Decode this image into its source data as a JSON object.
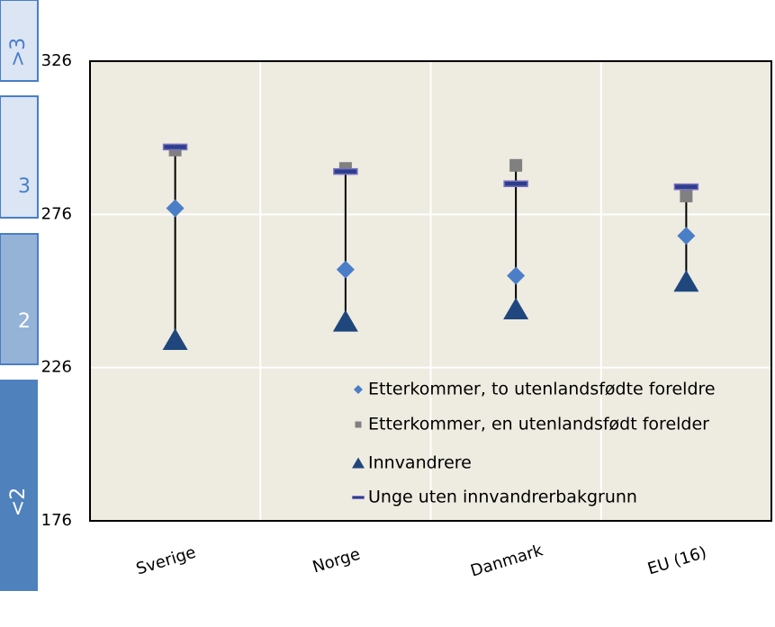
{
  "chart_data": {
    "type": "dot",
    "categories": [
      "Sverige",
      "Norge",
      "Danmark",
      "EU (16)"
    ],
    "series": [
      {
        "name": "Etterkommer, to utenlandsfødte foreldre",
        "color": "#4a7ec7",
        "marker": "diamond",
        "values": [
          278,
          258,
          256,
          269
        ]
      },
      {
        "name": "Etterkommer, en utenlandsfødt forelder",
        "color": "#808080",
        "marker": "square",
        "values": [
          297,
          291,
          292,
          282
        ]
      },
      {
        "name": "Innvandrere",
        "color": "#1f477d",
        "marker": "triangle",
        "values": [
          235,
          241,
          245,
          254
        ]
      },
      {
        "name": "Unge uten innvandrerbakgrunn",
        "color": "#7d6fc0",
        "marker": "dash",
        "values": [
          298,
          290,
          286,
          285
        ]
      }
    ],
    "ylim": [
      176,
      326
    ],
    "yticks": [
      176,
      226,
      276,
      326
    ],
    "grid": true,
    "levels": [
      ">3",
      "3",
      "2",
      "<2"
    ]
  }
}
